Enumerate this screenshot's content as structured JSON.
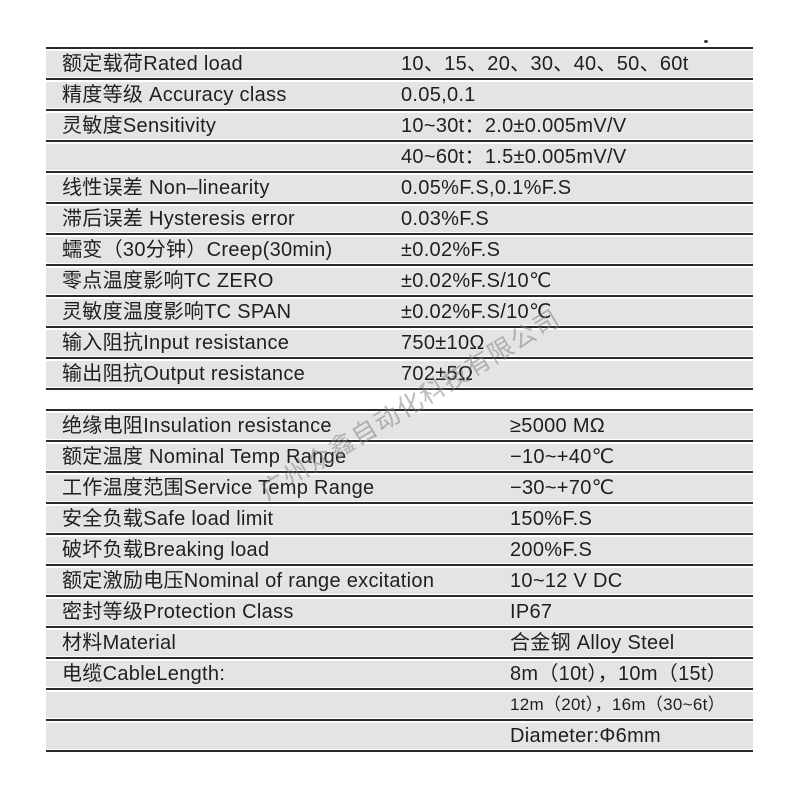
{
  "colors": {
    "row_band": "#e3e4e6",
    "rule_line": "#2a2a2a",
    "text": "#1f1f1f",
    "watermark": "rgba(122,122,122,0.5)"
  },
  "watermark": {
    "text": "广州众鑫自动化科技有限公司"
  },
  "tables": [
    {
      "name": "electrical-specs",
      "rows": [
        {
          "label": "额定载荷Rated load",
          "value": "10、15、20、30、40、50、60t"
        },
        {
          "label": "精度等级 Accuracy class",
          "value": "0.05,0.1"
        },
        {
          "label": "灵敏度Sensitivity",
          "value": "10~30t：2.0±0.005mV/V"
        },
        {
          "label": "",
          "value": "40~60t：1.5±0.005mV/V"
        },
        {
          "label": "线性误差 Non–linearity",
          "value": "0.05%F.S,0.1%F.S"
        },
        {
          "label": "滞后误差 Hysteresis error",
          "value": "0.03%F.S"
        },
        {
          "label": "蠕变（30分钟）Creep(30min)",
          "value": "±0.02%F.S"
        },
        {
          "label": "零点温度影响TC ZERO",
          "value": "±0.02%F.S/10℃"
        },
        {
          "label": "灵敏度温度影响TC SPAN",
          "value": "±0.02%F.S/10℃"
        },
        {
          "label": "输入阻抗Input resistance",
          "value": "750±10Ω"
        },
        {
          "label": "输出阻抗Output resistance",
          "value": "702±5Ω"
        }
      ]
    },
    {
      "name": "general-specs",
      "rows": [
        {
          "label": "绝缘电阻Insulation resistance",
          "value": "≥5000 MΩ"
        },
        {
          "label": "额定温度 Nominal Temp Range",
          "value": "−10~+40℃"
        },
        {
          "label": "工作温度范围Service Temp Range",
          "value": "−30~+70℃"
        },
        {
          "label": "安全负载Safe load limit",
          "value": "150%F.S"
        },
        {
          "label": "破坏负载Breaking load",
          "value": "200%F.S"
        },
        {
          "label": "额定激励电压Nominal of range excitation",
          "value": "10~12 V DC"
        },
        {
          "label": "密封等级Protection Class",
          "value": "IP67"
        },
        {
          "label": "材料Material",
          "value": "合金钢 Alloy Steel"
        },
        {
          "label": "电缆CableLength:",
          "value": "8m（10t），10m（15t）"
        },
        {
          "label": "",
          "value": "12m（20t），16m（30~6t）"
        },
        {
          "label": "",
          "value": "Diameter:Φ6mm"
        }
      ]
    }
  ]
}
